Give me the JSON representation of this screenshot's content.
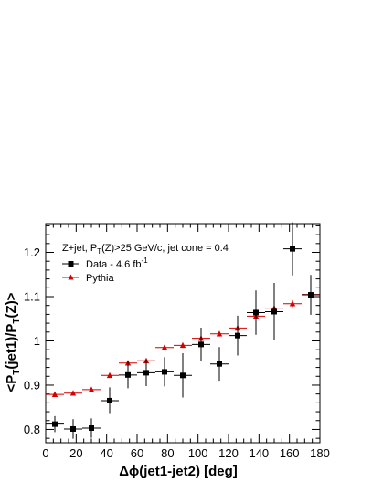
{
  "chart_data": {
    "type": "scatter",
    "title": "",
    "legend_header": "Z+jet, P",
    "legend_header_sub": "T",
    "legend_header_rest": "(Z)>25 GeV/c, jet cone = 0.4",
    "xlabel": "Δϕ(jet1-jet2) [deg]",
    "ylabel": "<P",
    "ylabel_sub1": "T",
    "ylabel_mid": "(jet1)/P",
    "ylabel_sub2": "T",
    "ylabel_end": "(Z)>",
    "xlim": [
      0,
      180
    ],
    "ylim": [
      0.77,
      1.265
    ],
    "xticks": [
      0,
      20,
      40,
      60,
      80,
      100,
      120,
      140,
      160,
      180
    ],
    "yticks": [
      0.8,
      0.9,
      1.0,
      1.1,
      1.2
    ],
    "ytick_labels": [
      "0.8",
      "0.9",
      "1",
      "1.1",
      "1.2"
    ],
    "legend_position": "top-left",
    "grid": false,
    "series": [
      {
        "name": "Data - 4.6 fb",
        "name_sup": "-1",
        "color": "#000000",
        "marker": "square",
        "x": [
          6,
          18,
          30,
          42,
          54,
          66,
          78,
          90,
          102,
          114,
          126,
          138,
          150,
          162,
          174
        ],
        "y": [
          0.812,
          0.801,
          0.803,
          0.865,
          0.923,
          0.928,
          0.93,
          0.922,
          0.992,
          0.948,
          1.012,
          1.064,
          1.066,
          1.208,
          1.104
        ],
        "yerr": [
          0.018,
          0.022,
          0.022,
          0.03,
          0.03,
          0.03,
          0.033,
          0.05,
          0.038,
          0.038,
          0.045,
          0.05,
          0.065,
          0.06,
          0.045
        ],
        "xerr": 6
      },
      {
        "name": "Pythia",
        "color": "#d40000",
        "marker": "triangle",
        "x": [
          6,
          18,
          30,
          42,
          54,
          66,
          78,
          90,
          102,
          114,
          126,
          138,
          150,
          162,
          174
        ],
        "y": [
          0.879,
          0.882,
          0.89,
          0.922,
          0.95,
          0.955,
          0.985,
          0.99,
          1.006,
          1.016,
          1.029,
          1.056,
          1.074,
          1.084,
          1.105
        ],
        "yerr": [
          0.004,
          0.004,
          0.004,
          0.005,
          0.005,
          0.005,
          0.005,
          0.006,
          0.006,
          0.006,
          0.007,
          0.007,
          0.008,
          0.008,
          0.009
        ],
        "xerr": 6
      }
    ]
  }
}
